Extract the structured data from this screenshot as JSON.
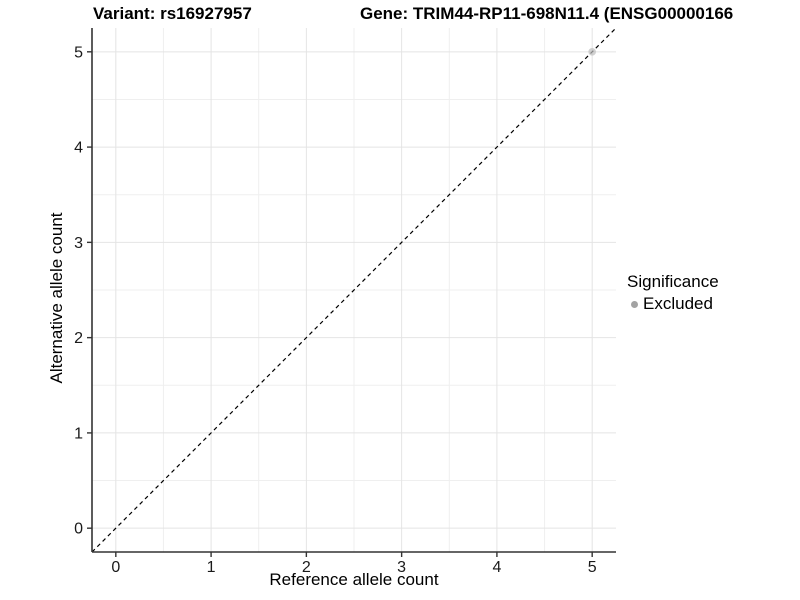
{
  "titles": {
    "variant": "Variant: rs16927957",
    "gene": "Gene: TRIM44-RP11-698N11.4 (ENSG00000166"
  },
  "legend": {
    "title": "Significance",
    "items": [
      {
        "label": "Excluded",
        "color": "#a3a3a3"
      }
    ]
  },
  "chart_data": {
    "type": "scatter",
    "title": "Variant: rs16927957   Gene: TRIM44-RP11-698N11.4 (ENSG00000166...)",
    "xlabel": "Reference allele count",
    "ylabel": "Alternative allele count",
    "xlim": [
      -0.25,
      5.25
    ],
    "ylim": [
      -0.25,
      5.25
    ],
    "xticks": [
      0,
      1,
      2,
      3,
      4,
      5
    ],
    "yticks": [
      0,
      1,
      2,
      3,
      4,
      5
    ],
    "minor_grid_step": 0.5,
    "grid": true,
    "legend_position": "right",
    "identity_line": {
      "slope": 1,
      "intercept": 0,
      "style": "dashed",
      "color": "#000000"
    },
    "series": [
      {
        "name": "Excluded",
        "color": "#bebebe",
        "opacity": 0.7,
        "points": [
          {
            "x": 5,
            "y": 5
          }
        ]
      }
    ],
    "colors": {
      "axis_line": "#333333",
      "tick_label": "#1a1a1a",
      "major_grid": "#e4e4e4",
      "minor_grid": "#efefef",
      "background": "#ffffff"
    }
  }
}
